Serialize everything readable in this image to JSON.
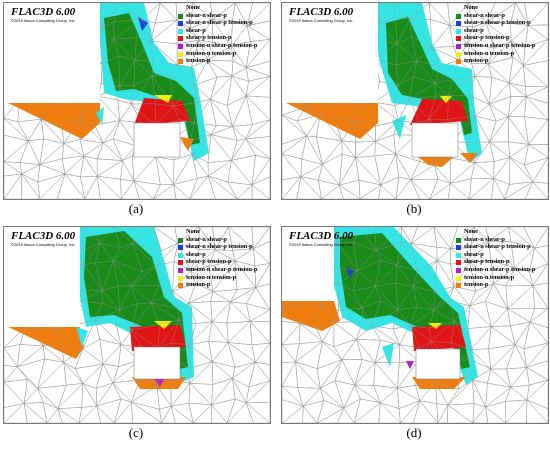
{
  "panels": [
    {
      "software_title": "FLAC3D 6.00",
      "copyright": "©2019 Itasca Consulting Group, Inc.",
      "caption": "(a)"
    },
    {
      "software_title": "FLAC3D 6.00",
      "copyright": "©2019 Itasca Consulting Group, Inc.",
      "caption": "(b)"
    },
    {
      "software_title": "FLAC3D 6.00",
      "copyright": "©2019 Itasca Consulting Group, Inc.",
      "caption": "(c)"
    },
    {
      "software_title": "FLAC3D 6.00",
      "copyright": "©2019 Itasca Consulting Group, Inc.",
      "caption": "(d)"
    }
  ],
  "legend": [
    {
      "label": "None",
      "color": ""
    },
    {
      "label": "shear-n shear-p",
      "color": "#1a8a1a"
    },
    {
      "label": "shear-n shear-p tension-p",
      "color": "#1a3fd6"
    },
    {
      "label": "shear-p",
      "color": "#33e6e6"
    },
    {
      "label": "shear-p tension-p",
      "color": "#e01414"
    },
    {
      "label": "tension-n shear-p tension-p",
      "color": "#b020c8"
    },
    {
      "label": "tension-n tension-p",
      "color": "#f5f00a"
    },
    {
      "label": "tension-p",
      "color": "#f07c0c"
    }
  ]
}
